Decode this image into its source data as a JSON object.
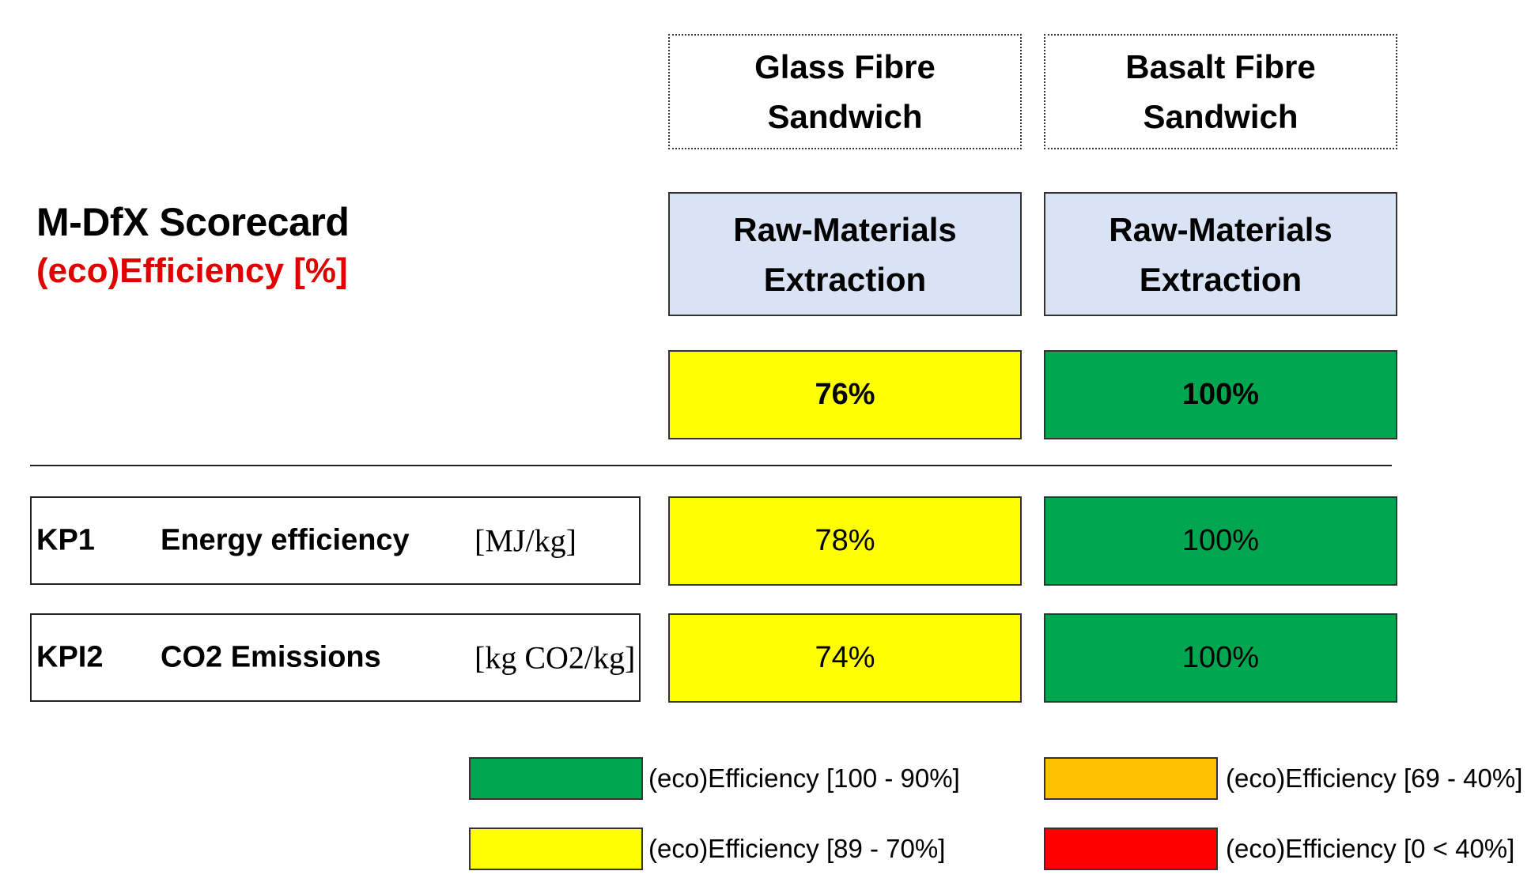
{
  "title": "M-DfX Scorecard",
  "subtitle": "(eco)Efficiency [%]",
  "columns": [
    {
      "line1": "Glass Fibre",
      "line2": "Sandwich",
      "stage_line1": "Raw-Materials",
      "stage_line2": "Extraction",
      "total": "76%",
      "kpi1": "78%",
      "kpi2": "74%"
    },
    {
      "line1": "Basalt Fibre",
      "line2": "Sandwich",
      "stage_line1": "Raw-Materials",
      "stage_line2": "Extraction",
      "total": "100%",
      "kpi1": "100%",
      "kpi2": "100%"
    }
  ],
  "kpis": [
    {
      "code": "KP1",
      "name": "Energy efficiency",
      "unit": "[MJ/kg]"
    },
    {
      "code": "KPI2",
      "name": "CO2 Emissions",
      "unit": "[kg CO2/kg]"
    }
  ],
  "legend": [
    {
      "label": "(eco)Efficiency [100 - 90%]",
      "color": "#00a650"
    },
    {
      "label": "(eco)Efficiency [89 - 70%]",
      "color": "#ffff00"
    },
    {
      "label": "(eco)Efficiency [69 - 40%]",
      "color": "#ffc000"
    },
    {
      "label": "(eco)Efficiency  [0 < 40%]",
      "color": "#ff0000"
    }
  ],
  "colors": {
    "green": "#00a650",
    "yellow": "#ffff00",
    "stage": "#dae3f3",
    "subtitle": "#e00000"
  }
}
